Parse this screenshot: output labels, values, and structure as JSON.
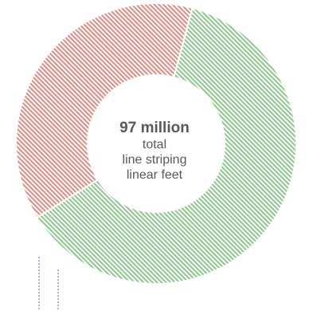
{
  "chart_data": {
    "type": "donut",
    "title": "",
    "series": [
      {
        "slices": [
          {
            "label": "",
            "value": 62,
            "color": "#8cc68c"
          },
          {
            "label": "",
            "value": 38,
            "color": "#e08a80"
          }
        ]
      }
    ],
    "center": {
      "value": "97 million",
      "lines": [
        "total",
        "line striping",
        "linear feet"
      ]
    }
  }
}
